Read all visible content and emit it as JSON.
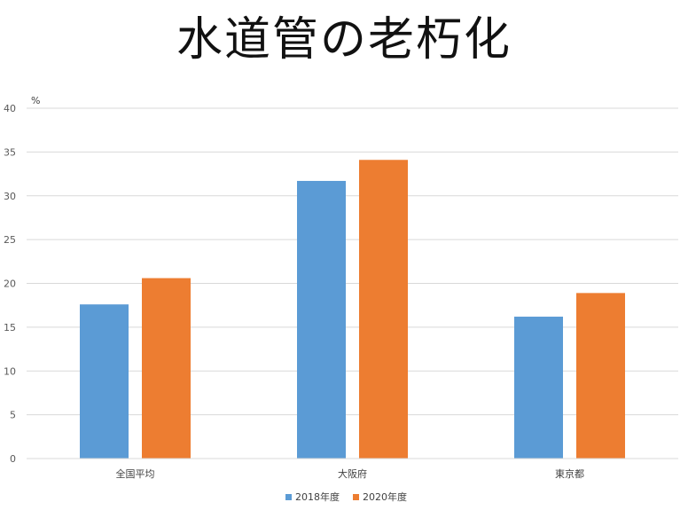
{
  "chart_data": {
    "type": "bar",
    "title": "水道管の老朽化",
    "unit_label": "%",
    "categories": [
      "全国平均",
      "大阪府",
      "東京都"
    ],
    "series": [
      {
        "name": "2018年度",
        "color": "#5B9BD5",
        "values": [
          17.6,
          31.7,
          16.2
        ]
      },
      {
        "name": "2020年度",
        "color": "#ED7D31",
        "values": [
          20.6,
          34.1,
          18.9
        ]
      }
    ],
    "ylim": [
      0,
      40
    ],
    "yticks": [
      0,
      5,
      10,
      15,
      20,
      25,
      30,
      35,
      40
    ],
    "grid": true,
    "legend_position": "bottom"
  }
}
